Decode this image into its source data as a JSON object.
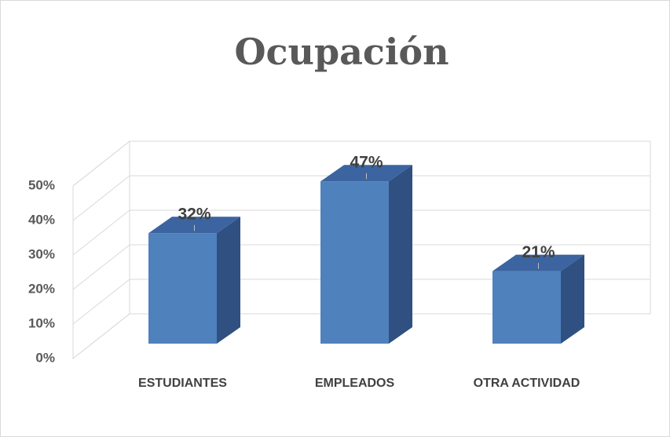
{
  "chart_data": {
    "type": "bar3d",
    "title": "Ocupación",
    "categories": [
      "ESTUDIANTES",
      "EMPLEADOS",
      "OTRA ACTIVIDAD"
    ],
    "values": [
      32,
      47,
      21
    ],
    "value_labels": [
      "32%",
      "47%",
      "21%"
    ],
    "color": "#4f81bd",
    "ylim": [
      0,
      50
    ],
    "yticks": [
      {
        "value": 0,
        "label": "0%"
      },
      {
        "value": 10,
        "label": "10%"
      },
      {
        "value": 20,
        "label": "20%"
      },
      {
        "value": 30,
        "label": "30%"
      },
      {
        "value": 40,
        "label": "40%"
      },
      {
        "value": 50,
        "label": "50%"
      }
    ],
    "grid": true
  }
}
